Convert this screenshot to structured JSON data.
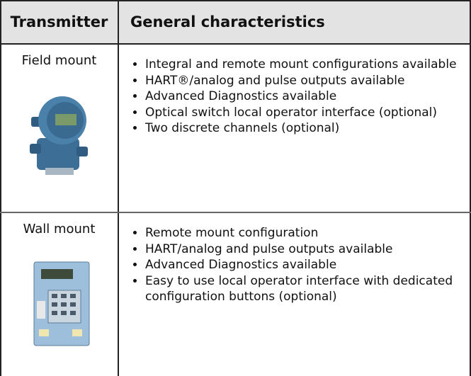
{
  "table": {
    "header": [
      "Transmitter",
      "General characteristics"
    ],
    "rows": [
      {
        "transmitter": "Field mount",
        "characteristics": [
          "Integral and remote mount configurations available",
          "HART®/analog and pulse outputs available",
          "Advanced Diagnostics available",
          "Optical switch local operator interface (optional)",
          "Two discrete channels (optional)"
        ]
      },
      {
        "transmitter": "Wall mount",
        "characteristics": [
          "Remote mount configuration",
          "HART/analog and pulse outputs available",
          "Advanced Diagnostics available",
          "Easy to use local operator interface with dedicated configuration buttons (optional)"
        ]
      }
    ]
  }
}
